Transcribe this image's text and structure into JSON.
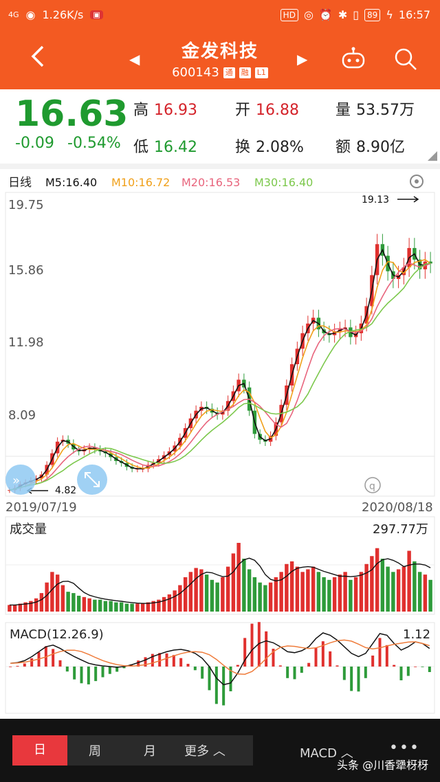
{
  "status": {
    "net": "4G",
    "speed": "1.26K/s",
    "battery": "89",
    "time": "16:57",
    "hd": "HD"
  },
  "header": {
    "title": "金发科技",
    "code": "600143",
    "tag1": "通",
    "tag2": "融",
    "tag3": "L1"
  },
  "quote": {
    "price": "16.63",
    "change": "-0.09",
    "change_pct": "-0.54%",
    "high_k": "高",
    "high_v": "16.93",
    "open_k": "开",
    "open_v": "16.88",
    "vol_k": "量",
    "vol_v": "53.57万",
    "low_k": "低",
    "low_v": "16.42",
    "turn_k": "换",
    "turn_v": "2.08%",
    "amt_k": "额",
    "amt_v": "8.90亿"
  },
  "legend": {
    "period": "日线",
    "m5": "M5:16.40",
    "m10": "M10:16.72",
    "m20": "M20:16.53",
    "m30": "M30:16.40"
  },
  "colors": {
    "m5": "#111111",
    "m10": "#f0a01a",
    "m20": "#e8647c",
    "m30": "#7cc84c",
    "up": "#e0302e",
    "down": "#2e9b3a"
  },
  "dates": {
    "start": "2019/07/19",
    "end": "2020/08/18"
  },
  "volume": {
    "label": "成交量",
    "max": "297.77万"
  },
  "macd": {
    "label": "MACD(12.26.9)",
    "max": "1.12"
  },
  "chart_data": {
    "type": "candlestick",
    "yticks": [
      "19.75",
      "15.86",
      "11.98",
      "8.09"
    ],
    "high_mark": "19.13",
    "low_mark": "4.82",
    "close": [
      4.9,
      5.0,
      5.2,
      5.3,
      5.4,
      5.5,
      5.7,
      6.2,
      6.8,
      7.4,
      7.5,
      7.3,
      7.0,
      6.9,
      7.0,
      7.1,
      7.0,
      6.9,
      6.8,
      6.6,
      6.4,
      6.3,
      6.1,
      6.0,
      6.0,
      6.0,
      6.2,
      6.3,
      6.5,
      6.7,
      6.9,
      7.2,
      7.6,
      8.1,
      8.6,
      9.0,
      9.2,
      9.1,
      8.9,
      8.8,
      9.0,
      9.5,
      10.0,
      10.6,
      10.2,
      9.0,
      7.8,
      7.5,
      7.4,
      7.7,
      8.4,
      9.3,
      10.3,
      11.4,
      12.2,
      13.0,
      13.5,
      13.8,
      13.2,
      13.0,
      12.9,
      13.1,
      13.2,
      13.3,
      12.8,
      13.0,
      13.5,
      14.4,
      16.0,
      17.6,
      17.0,
      16.2,
      15.8,
      16.0,
      16.4,
      17.4,
      16.8,
      16.3,
      16.7,
      16.6
    ],
    "volume": [
      5,
      5,
      6,
      7,
      8,
      10,
      14,
      22,
      30,
      28,
      20,
      15,
      14,
      12,
      11,
      10,
      9,
      9,
      8,
      8,
      7,
      7,
      6,
      6,
      6,
      6,
      7,
      8,
      9,
      11,
      13,
      16,
      20,
      26,
      30,
      33,
      32,
      28,
      24,
      22,
      26,
      34,
      44,
      52,
      40,
      32,
      26,
      22,
      20,
      22,
      26,
      30,
      36,
      38,
      34,
      30,
      32,
      34,
      30,
      26,
      24,
      26,
      28,
      30,
      24,
      26,
      30,
      36,
      42,
      48,
      40,
      34,
      30,
      32,
      34,
      46,
      38,
      30,
      28,
      24
    ],
    "macd_dif": [
      0.1,
      0.12,
      0.18,
      0.3,
      0.45,
      0.6,
      0.65,
      0.55,
      0.42,
      0.3,
      0.2,
      0.1,
      0.05,
      0.02,
      0.0,
      -0.02,
      0.0,
      0.05,
      0.12,
      0.2,
      0.3,
      0.38,
      0.45,
      0.5,
      0.52,
      0.48,
      0.4,
      0.25,
      0.0,
      -0.35,
      -0.55,
      -0.5,
      -0.2,
      0.2,
      0.5,
      0.7,
      0.78,
      0.72,
      0.6,
      0.45,
      0.42,
      0.48,
      0.6,
      0.85,
      1.02,
      0.95,
      0.8,
      0.6,
      0.4,
      0.3,
      0.4,
      0.7,
      1.0,
      0.95,
      0.7,
      0.5,
      0.6,
      0.75,
      0.7,
      0.55
    ]
  },
  "footer": {
    "tab_day": "日",
    "tab_week": "周",
    "tab_month": "月",
    "tab_more": "更多",
    "indicator": "MACD",
    "more_dots": "•••"
  },
  "watermark": "头条 @川香犟枒枒"
}
